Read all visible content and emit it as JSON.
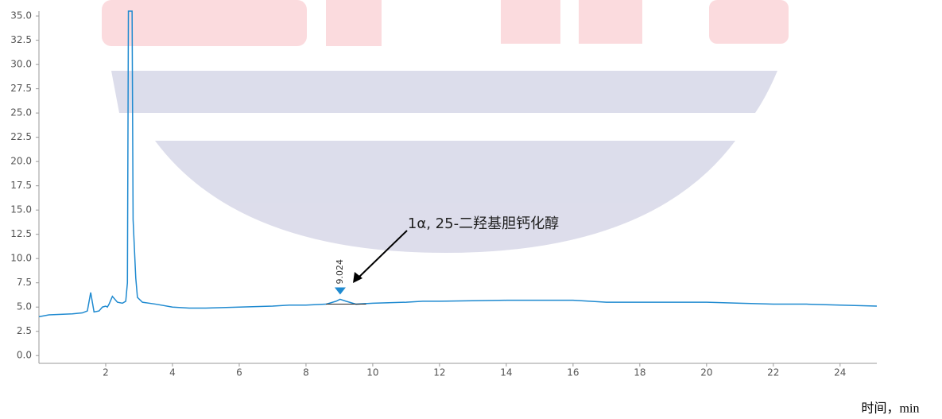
{
  "chart_data": {
    "type": "line",
    "x": [
      0,
      0.3,
      1.0,
      1.3,
      1.45,
      1.55,
      1.65,
      1.8,
      1.9,
      2.0,
      2.05,
      2.1,
      2.2,
      2.35,
      2.5,
      2.6,
      2.65,
      2.68,
      2.79,
      2.82,
      2.9,
      2.95,
      3.1,
      3.5,
      4,
      4.5,
      5,
      6,
      7,
      7.5,
      8,
      8.6,
      8.9,
      9.02,
      9.2,
      9.5,
      10,
      11,
      11.5,
      12,
      14,
      16,
      16.5,
      17,
      20,
      21,
      22,
      23,
      24,
      25.1
    ],
    "values": [
      4.0,
      4.2,
      4.3,
      4.4,
      4.6,
      6.5,
      4.5,
      4.6,
      5.0,
      5.1,
      5.0,
      5.3,
      6.1,
      5.5,
      5.4,
      5.6,
      7.5,
      35.5,
      35.5,
      14,
      8,
      6,
      5.5,
      5.3,
      5.0,
      4.9,
      4.9,
      5.0,
      5.1,
      5.2,
      5.2,
      5.3,
      5.6,
      5.8,
      5.6,
      5.3,
      5.4,
      5.5,
      5.6,
      5.6,
      5.7,
      5.7,
      5.6,
      5.5,
      5.5,
      5.4,
      5.3,
      5.3,
      5.2,
      5.1
    ],
    "color": "#1f8ad0",
    "xlim": [
      0,
      25.1
    ],
    "ylim": [
      -0.8,
      35.5
    ],
    "xticks": [
      2,
      4,
      6,
      8,
      10,
      12,
      14,
      16,
      18,
      20,
      22,
      24
    ],
    "yticks": [
      {
        "value": 0,
        "label": "0.0"
      },
      2.5,
      {
        "value": 5,
        "label": "5.0"
      },
      7.5,
      {
        "value": 10,
        "label": "10.0"
      },
      12.5,
      {
        "value": 15,
        "label": "15.0"
      },
      17.5,
      {
        "value": 20,
        "label": "20.0"
      },
      22.5,
      {
        "value": 25,
        "label": "25.0"
      },
      27.5,
      {
        "value": 30,
        "label": "30.0"
      },
      32.5,
      {
        "value": 35,
        "label": "35.0"
      }
    ],
    "peak": {
      "x": 9.024
    },
    "annotation": "1α, 25-二羟基胆钙化醇",
    "xlabel": "时间，min"
  }
}
